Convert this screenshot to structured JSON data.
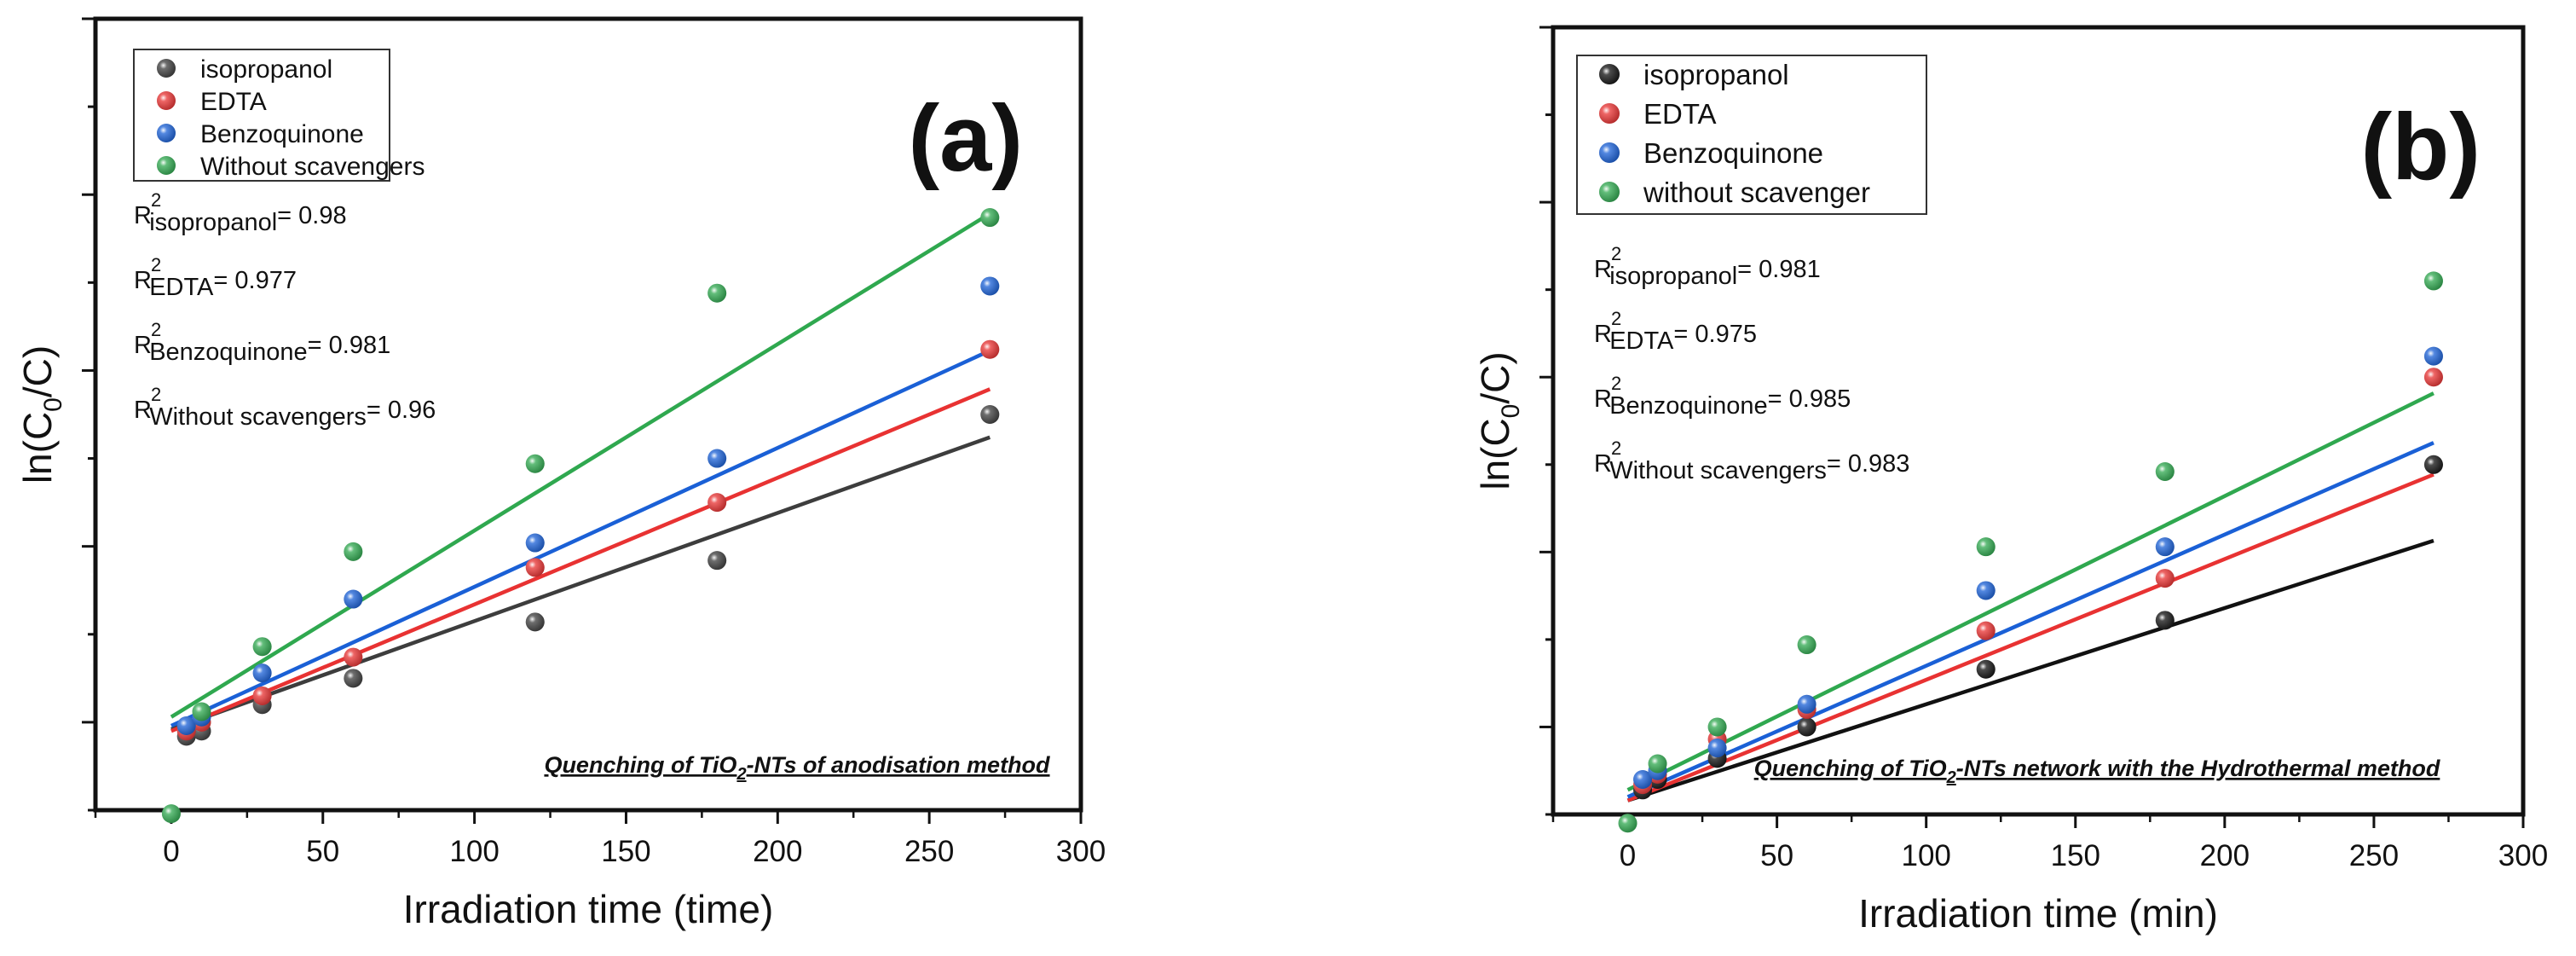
{
  "chart_data": [
    {
      "type": "scatter",
      "panel_label": "(a)",
      "xlabel": "Irradiation time (time)",
      "ylabel_parts": [
        "ln(C",
        "0",
        "/C)"
      ],
      "xlim": [
        -25,
        300
      ],
      "ylim": [
        -0.5,
        4.0
      ],
      "xticks": [
        0,
        50,
        100,
        150,
        200,
        250,
        300
      ],
      "caption_parts": [
        "Quenching of TiO",
        "2",
        "-NTs of anodisation method"
      ],
      "legend": {
        "entries": [
          "isopropanol",
          "EDTA",
          "Benzoquinone",
          "Without scavengers"
        ],
        "placement": "top-left"
      },
      "series": [
        {
          "name": "isopropanol",
          "color": "#3d3d3d",
          "points": [
            [
              5,
              -0.08
            ],
            [
              10,
              -0.05
            ],
            [
              30,
              0.1
            ],
            [
              60,
              0.25
            ],
            [
              120,
              0.57
            ],
            [
              180,
              0.92
            ],
            [
              270,
              1.75
            ]
          ],
          "fit": {
            "slope": 0.00615,
            "intercept": -0.04,
            "x_range": [
              0,
              270
            ]
          }
        },
        {
          "name": "EDTA",
          "color": "#e83232",
          "points": [
            [
              5,
              -0.05
            ],
            [
              10,
              0.0
            ],
            [
              30,
              0.15
            ],
            [
              60,
              0.37
            ],
            [
              120,
              0.88
            ],
            [
              180,
              1.25
            ],
            [
              270,
              2.12
            ]
          ],
          "fit": {
            "slope": 0.0072,
            "intercept": -0.05,
            "x_range": [
              0,
              270
            ]
          }
        },
        {
          "name": "Benzoquinone",
          "color": "#1a60d6",
          "points": [
            [
              5,
              -0.02
            ],
            [
              10,
              0.03
            ],
            [
              30,
              0.28
            ],
            [
              60,
              0.7
            ],
            [
              120,
              1.02
            ],
            [
              180,
              1.5
            ],
            [
              270,
              2.48
            ]
          ],
          "fit": {
            "slope": 0.0079,
            "intercept": -0.02,
            "x_range": [
              0,
              270
            ]
          }
        },
        {
          "name": "Without scavengers",
          "color": "#2fa84f",
          "points": [
            [
              0,
              -0.52
            ],
            [
              10,
              0.06
            ],
            [
              30,
              0.43
            ],
            [
              60,
              0.97
            ],
            [
              120,
              1.47
            ],
            [
              180,
              2.44
            ],
            [
              270,
              2.87
            ]
          ],
          "fit": {
            "slope": 0.0106,
            "intercept": 0.03,
            "x_range": [
              0,
              270
            ]
          }
        }
      ],
      "r2_annotations": [
        {
          "sub": "isopropanol",
          "value": "= 0.98"
        },
        {
          "sub": "EDTA",
          "value": "= 0.977"
        },
        {
          "sub": "Benzoquinone",
          "value": "= 0.981"
        },
        {
          "sub": "Without scavengers",
          "value": "= 0.96"
        }
      ]
    },
    {
      "type": "scatter",
      "panel_label": "(b)",
      "xlabel": "Irradiation time (min)",
      "ylabel_parts": [
        "ln(C",
        "0",
        "/C)"
      ],
      "xlim": [
        -25,
        300
      ],
      "ylim": [
        -0.5,
        4.0
      ],
      "xticks": [
        0,
        50,
        100,
        150,
        200,
        250,
        300
      ],
      "caption_parts": [
        "Quenching of TiO",
        "2",
        "-NTs network with the Hydrothermal method"
      ],
      "legend": {
        "entries": [
          "isopropanol",
          "EDTA",
          "Benzoquinone",
          "without scavenger"
        ],
        "placement": "top-left"
      },
      "series": [
        {
          "name": "isopropanol",
          "color": "#111111",
          "points": [
            [
              5,
              -0.36
            ],
            [
              10,
              -0.3
            ],
            [
              30,
              -0.18
            ],
            [
              60,
              0.0
            ],
            [
              120,
              0.33
            ],
            [
              180,
              0.61
            ],
            [
              270,
              1.5
            ]
          ],
          "fit": {
            "slope": 0.0055,
            "intercept": -0.42,
            "x_range": [
              0,
              270
            ]
          }
        },
        {
          "name": "EDTA",
          "color": "#e83232",
          "points": [
            [
              5,
              -0.33
            ],
            [
              10,
              -0.27
            ],
            [
              30,
              -0.07
            ],
            [
              60,
              0.1
            ],
            [
              120,
              0.55
            ],
            [
              180,
              0.85
            ],
            [
              270,
              2.0
            ]
          ],
          "fit": {
            "slope": 0.0069,
            "intercept": -0.42,
            "x_range": [
              0,
              270
            ]
          }
        },
        {
          "name": "Benzoquinone",
          "color": "#1a60d6",
          "points": [
            [
              5,
              -0.3
            ],
            [
              10,
              -0.25
            ],
            [
              30,
              -0.12
            ],
            [
              60,
              0.13
            ],
            [
              120,
              0.78
            ],
            [
              180,
              1.03
            ],
            [
              270,
              2.12
            ]
          ],
          "fit": {
            "slope": 0.0075,
            "intercept": -0.4,
            "x_range": [
              0,
              270
            ]
          }
        },
        {
          "name": "without scavenger",
          "color": "#2fa84f",
          "points": [
            [
              0,
              -0.55
            ],
            [
              10,
              -0.21
            ],
            [
              30,
              0.0
            ],
            [
              60,
              0.47
            ],
            [
              120,
              1.03
            ],
            [
              180,
              1.46
            ],
            [
              270,
              2.55
            ]
          ],
          "fit": {
            "slope": 0.0084,
            "intercept": -0.36,
            "x_range": [
              0,
              270
            ]
          }
        }
      ],
      "r2_annotations": [
        {
          "sub": "isopropanol",
          "value": "= 0.981"
        },
        {
          "sub": "EDTA",
          "value": "= 0.975"
        },
        {
          "sub": "Benzoquinone",
          "value": "= 0.985"
        },
        {
          "sub": "Without scavengers",
          "value": "= 0.983"
        }
      ]
    }
  ]
}
